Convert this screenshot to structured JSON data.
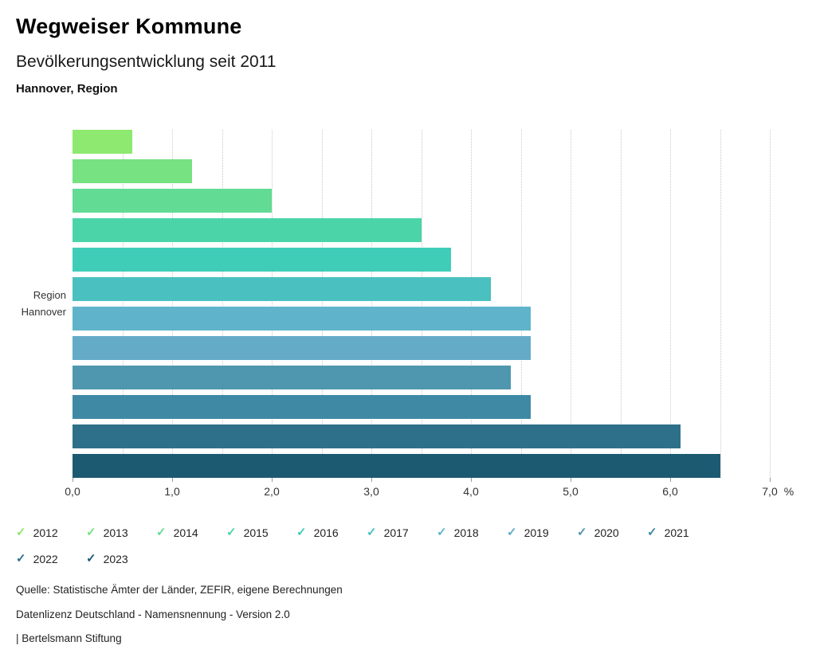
{
  "header": {
    "title": "Wegweiser Kommune",
    "subtitle": "Bevölkerungsentwicklung seit 2011",
    "region": "Hannover, Region"
  },
  "chart_data": {
    "type": "bar",
    "orientation": "horizontal",
    "title": "Bevölkerungsentwicklung seit 2011",
    "group_label_line1": "Region",
    "group_label_line2": "Hannover",
    "categories": [
      "2012",
      "2013",
      "2014",
      "2015",
      "2016",
      "2017",
      "2018",
      "2019",
      "2020",
      "2021",
      "2022",
      "2023"
    ],
    "values": [
      0.6,
      1.2,
      2.0,
      3.5,
      3.8,
      4.2,
      4.6,
      4.6,
      4.4,
      4.6,
      6.1,
      6.5
    ],
    "colors": [
      "#8DE96F",
      "#77E282",
      "#62DB95",
      "#4CD4A9",
      "#3FCDB7",
      "#4AC0C0",
      "#5FB4CB",
      "#64ABC8",
      "#4F97AE",
      "#3F89A5",
      "#2E7089",
      "#1C5A72"
    ],
    "xlim": [
      0,
      7
    ],
    "x_tick_labels": [
      "0,0",
      "1,0",
      "2,0",
      "3,0",
      "4,0",
      "5,0",
      "6,0",
      "7,0"
    ],
    "x_unit": "%",
    "gridline_step": 0.5,
    "grid": "dotted-vertical",
    "legend_position": "bottom",
    "ylabel": "Region Hannover",
    "value_unit": "percent change since 2011"
  },
  "legend": {
    "items": [
      {
        "label": "2012",
        "color": "#8DE96F"
      },
      {
        "label": "2013",
        "color": "#77E282"
      },
      {
        "label": "2014",
        "color": "#62DB95"
      },
      {
        "label": "2015",
        "color": "#4CD4A9"
      },
      {
        "label": "2016",
        "color": "#3FCDB7"
      },
      {
        "label": "2017",
        "color": "#4AC0C0"
      },
      {
        "label": "2018",
        "color": "#5FB4CB"
      },
      {
        "label": "2019",
        "color": "#64ABC8"
      },
      {
        "label": "2020",
        "color": "#4F97AE"
      },
      {
        "label": "2021",
        "color": "#3F89A5"
      },
      {
        "label": "2022",
        "color": "#2E7089"
      },
      {
        "label": "2023",
        "color": "#1C5A72"
      }
    ]
  },
  "footer": {
    "source": "Quelle: Statistische Ämter der Länder, ZEFIR, eigene Berechnungen",
    "license": "Datenlizenz Deutschland - Namensnennung - Version 2.0",
    "attribution": "| Bertelsmann Stiftung"
  }
}
